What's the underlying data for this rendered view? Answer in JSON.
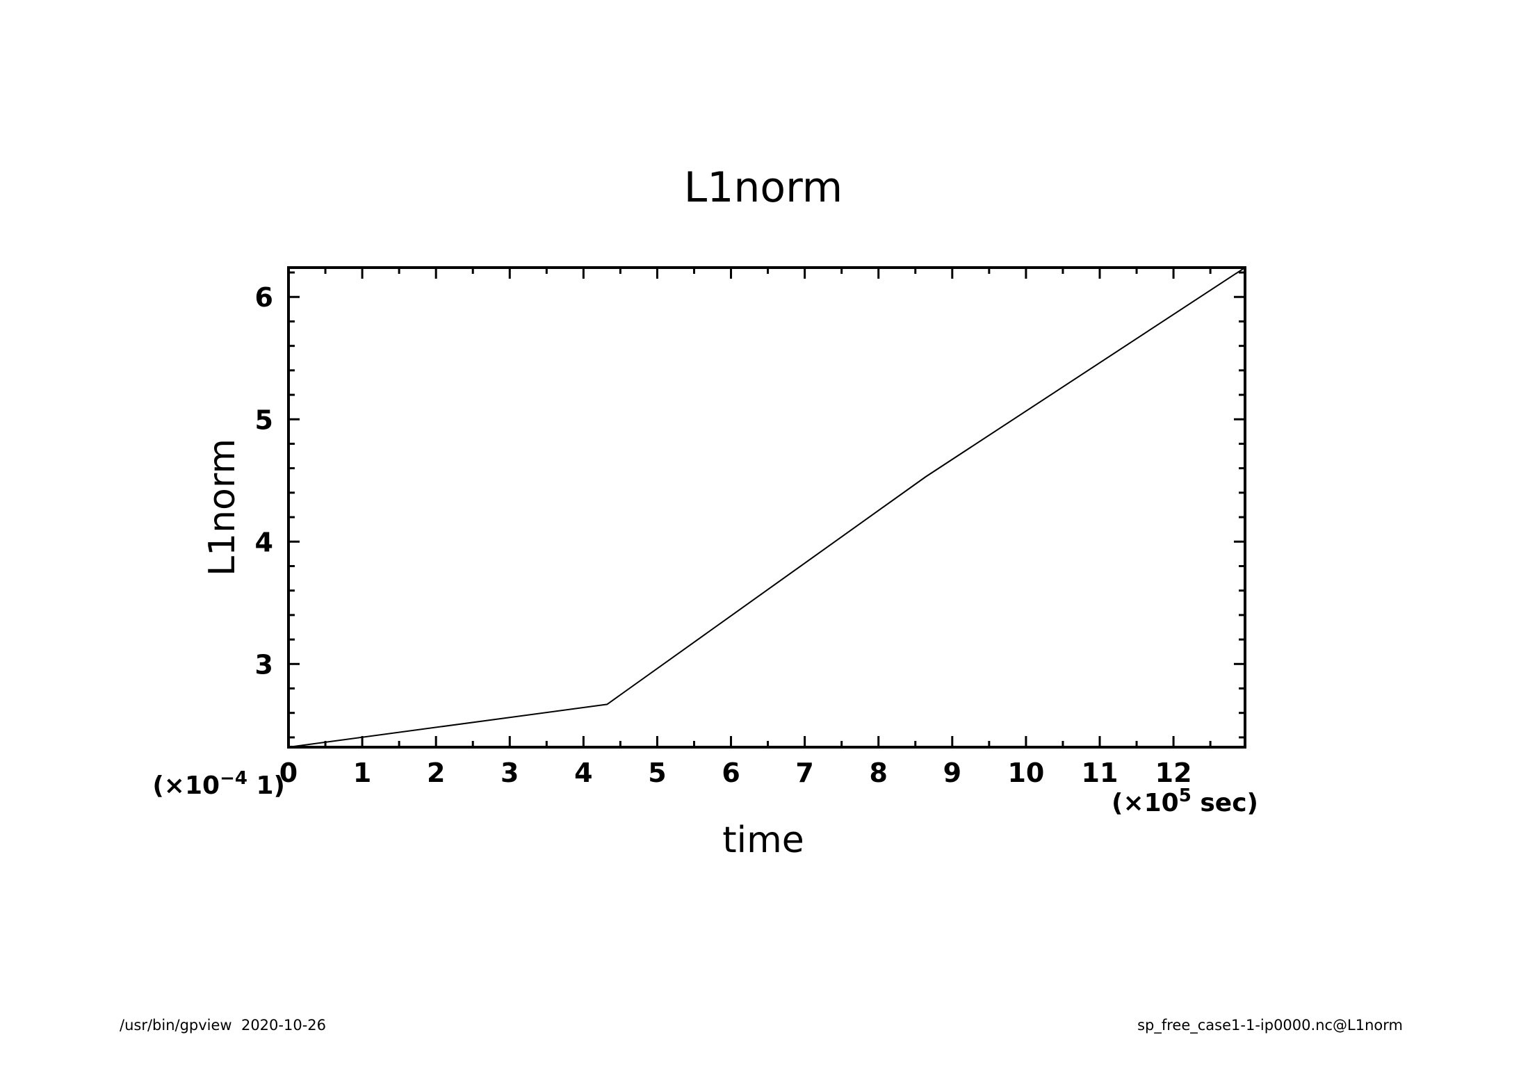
{
  "chart_data": {
    "type": "line",
    "title": "L1norm",
    "xlabel": "time",
    "ylabel": "L1norm",
    "x_scale_label": {
      "prefix": "(×10",
      "exp": "5",
      "suffix": " sec)"
    },
    "y_scale_label": {
      "prefix": "(×10",
      "exp": "−4",
      "suffix": " 1)"
    },
    "xlim": [
      0,
      12.97
    ],
    "ylim": [
      2.32,
      6.24
    ],
    "x_ticks_major": [
      0,
      1,
      2,
      3,
      4,
      5,
      6,
      7,
      8,
      9,
      10,
      11,
      12
    ],
    "x_ticks_minor_step": 0.5,
    "y_ticks_major": [
      3,
      4,
      5,
      6
    ],
    "y_ticks_minor_step": 0.2,
    "grid": false,
    "series": [
      {
        "x": [
          0,
          4.32,
          8.64,
          12.97
        ],
        "y": [
          2.32,
          2.67,
          4.53,
          6.24
        ]
      }
    ]
  },
  "footer": {
    "left": "/usr/bin/gpview  2020-10-26",
    "right": "sp_free_case1-1-ip0000.nc@L1norm"
  }
}
